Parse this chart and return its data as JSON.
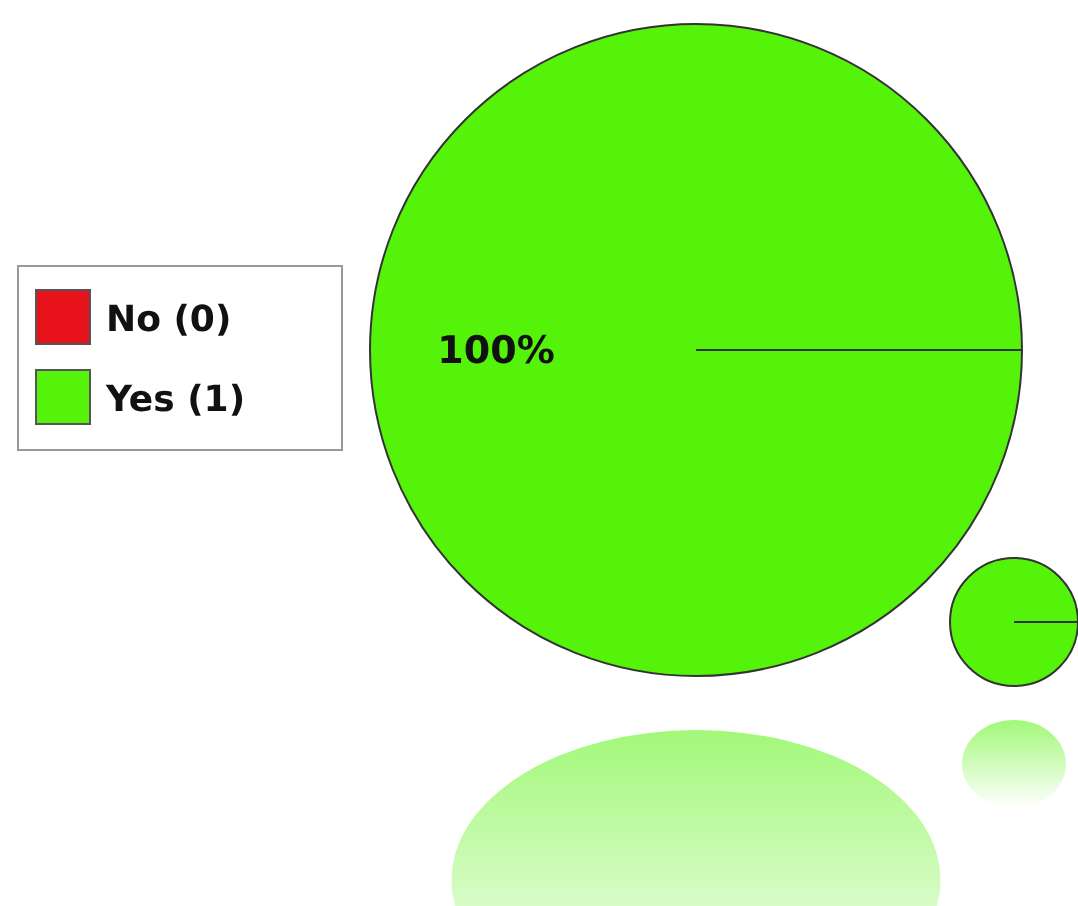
{
  "chart_data": {
    "type": "pie",
    "categories": [
      "No (0)",
      "Yes (1)"
    ],
    "values": [
      0,
      100
    ],
    "colors": [
      "#e8121a",
      "#55f20a"
    ],
    "value_labels": [
      null,
      "100%"
    ],
    "legend": "left"
  }
}
